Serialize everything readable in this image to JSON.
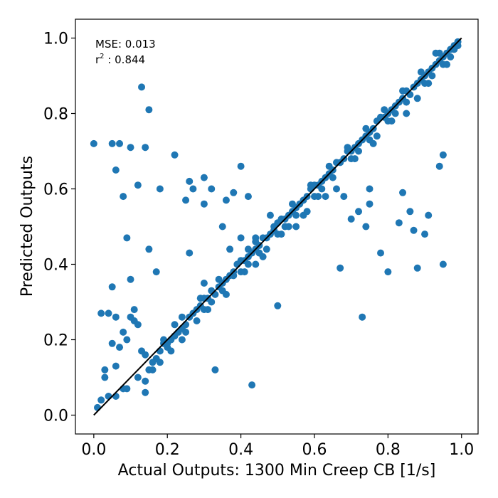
{
  "chart_data": {
    "type": "scatter",
    "title": "",
    "xlabel": "Actual Outputs: 1300 Min Creep CB [1/s]",
    "ylabel": "Predicted Outputs",
    "xlim": [
      -0.05,
      1.045
    ],
    "ylim": [
      -0.05,
      1.05
    ],
    "xticks": [
      0.0,
      0.2,
      0.4,
      0.6,
      0.8,
      1.0
    ],
    "yticks": [
      0.0,
      0.2,
      0.4,
      0.6,
      0.8,
      1.0
    ],
    "xtick_labels": [
      "0.0",
      "0.2",
      "0.4",
      "0.6",
      "0.8",
      "1.0"
    ],
    "ytick_labels": [
      "0.0",
      "0.2",
      "0.4",
      "0.6",
      "0.8",
      "1.0"
    ],
    "grid": false,
    "annotation": {
      "mse_text": "MSE: 0.013",
      "r2_prefix": "r",
      "r2_sup": "2",
      "r2_value": " : 0.844"
    },
    "point_color": "#1f77b4",
    "line_color": "#000000",
    "reference_line": {
      "x": [
        0.0,
        1.0
      ],
      "y": [
        0.0,
        1.0
      ]
    },
    "series": [
      {
        "x": [
          0.0,
          0.13,
          0.15,
          0.07,
          0.05,
          0.14,
          0.1,
          0.22,
          0.25,
          0.26,
          0.3,
          0.32,
          0.36,
          0.27,
          0.38,
          0.4,
          0.42,
          0.44,
          0.47,
          0.42,
          0.4,
          0.48,
          0.06,
          0.12,
          0.18,
          0.09,
          0.1,
          0.15,
          0.05,
          0.08,
          0.17,
          0.26,
          0.35,
          0.3,
          0.37,
          0.3,
          0.38,
          0.5,
          0.33,
          0.43,
          0.67,
          0.73,
          0.78,
          0.74,
          0.8,
          0.87,
          0.91,
          0.95,
          0.83,
          0.84,
          0.86,
          0.95,
          0.88,
          0.9,
          0.94,
          0.72,
          0.75,
          0.68,
          0.7,
          0.75,
          0.55,
          0.02,
          0.04,
          0.06,
          0.1,
          0.11,
          0.12,
          0.08,
          0.05,
          0.07,
          0.03,
          0.09,
          0.11,
          0.13,
          0.14,
          0.03,
          0.04,
          0.06,
          0.09,
          0.01,
          0.02,
          0.17,
          0.19,
          0.21,
          0.23,
          0.25,
          0.27,
          0.29,
          0.31,
          0.33,
          0.35,
          0.37,
          0.39,
          0.41,
          0.43,
          0.45,
          0.47,
          0.49,
          0.51,
          0.53,
          0.55,
          0.57,
          0.59,
          0.61,
          0.63,
          0.65,
          0.67,
          0.69,
          0.71,
          0.73,
          0.75,
          0.77,
          0.79,
          0.81,
          0.83,
          0.85,
          0.87,
          0.89,
          0.91,
          0.93,
          0.95,
          0.97,
          0.99,
          0.16,
          0.18,
          0.2,
          0.22,
          0.24,
          0.26,
          0.28,
          0.3,
          0.32,
          0.34,
          0.36,
          0.38,
          0.4,
          0.42,
          0.44,
          0.46,
          0.48,
          0.5,
          0.52,
          0.54,
          0.56,
          0.58,
          0.6,
          0.62,
          0.64,
          0.66,
          0.68,
          0.7,
          0.72,
          0.74,
          0.76,
          0.78,
          0.8,
          0.82,
          0.84,
          0.86,
          0.88,
          0.9,
          0.92,
          0.94,
          0.96,
          0.98,
          0.15,
          0.2,
          0.25,
          0.3,
          0.35,
          0.4,
          0.45,
          0.5,
          0.55,
          0.6,
          0.65,
          0.7,
          0.75,
          0.8,
          0.85,
          0.9,
          0.95,
          0.12,
          0.22,
          0.32,
          0.42,
          0.52,
          0.62,
          0.72,
          0.82,
          0.92,
          0.14,
          0.24,
          0.34,
          0.44,
          0.54,
          0.64,
          0.74,
          0.84,
          0.94,
          0.21,
          0.31,
          0.41,
          0.51,
          0.61,
          0.71,
          0.81,
          0.91,
          0.19,
          0.29,
          0.39,
          0.49,
          0.59,
          0.69,
          0.79,
          0.89,
          0.99,
          0.97,
          0.96,
          0.98,
          0.93,
          0.85,
          0.88,
          0.76,
          0.77,
          0.66,
          0.63,
          0.58,
          0.57,
          0.53,
          0.46,
          0.44,
          0.36,
          0.28,
          0.24,
          0.18,
          0.16,
          0.14,
          0.08,
          0.06
        ],
        "y": [
          0.72,
          0.87,
          0.81,
          0.72,
          0.72,
          0.71,
          0.71,
          0.69,
          0.57,
          0.62,
          0.63,
          0.6,
          0.57,
          0.6,
          0.59,
          0.66,
          0.58,
          0.47,
          0.44,
          0.44,
          0.47,
          0.53,
          0.65,
          0.61,
          0.6,
          0.47,
          0.36,
          0.44,
          0.34,
          0.58,
          0.38,
          0.43,
          0.5,
          0.56,
          0.44,
          0.35,
          0.37,
          0.29,
          0.12,
          0.08,
          0.39,
          0.26,
          0.43,
          0.5,
          0.38,
          0.49,
          0.53,
          0.4,
          0.51,
          0.59,
          0.54,
          0.69,
          0.39,
          0.48,
          0.66,
          0.54,
          0.56,
          0.58,
          0.52,
          0.6,
          0.5,
          0.27,
          0.27,
          0.26,
          0.26,
          0.28,
          0.24,
          0.22,
          0.19,
          0.18,
          0.12,
          0.2,
          0.25,
          0.17,
          0.06,
          0.1,
          0.05,
          0.13,
          0.07,
          0.02,
          0.04,
          0.15,
          0.19,
          0.2,
          0.22,
          0.24,
          0.27,
          0.29,
          0.31,
          0.32,
          0.35,
          0.37,
          0.4,
          0.41,
          0.43,
          0.45,
          0.47,
          0.49,
          0.52,
          0.53,
          0.55,
          0.57,
          0.6,
          0.61,
          0.63,
          0.65,
          0.67,
          0.7,
          0.71,
          0.73,
          0.75,
          0.78,
          0.79,
          0.81,
          0.83,
          0.86,
          0.87,
          0.89,
          0.91,
          0.93,
          0.95,
          0.97,
          0.98,
          0.14,
          0.17,
          0.19,
          0.21,
          0.23,
          0.26,
          0.28,
          0.31,
          0.33,
          0.34,
          0.36,
          0.38,
          0.41,
          0.42,
          0.44,
          0.47,
          0.48,
          0.51,
          0.52,
          0.54,
          0.56,
          0.58,
          0.61,
          0.62,
          0.64,
          0.67,
          0.68,
          0.7,
          0.72,
          0.74,
          0.76,
          0.79,
          0.8,
          0.82,
          0.84,
          0.85,
          0.88,
          0.9,
          0.92,
          0.94,
          0.96,
          0.98,
          0.12,
          0.18,
          0.22,
          0.28,
          0.33,
          0.38,
          0.43,
          0.48,
          0.53,
          0.58,
          0.63,
          0.68,
          0.73,
          0.78,
          0.83,
          0.88,
          0.93,
          0.1,
          0.24,
          0.3,
          0.4,
          0.5,
          0.6,
          0.7,
          0.8,
          0.9,
          0.16,
          0.26,
          0.36,
          0.46,
          0.56,
          0.66,
          0.76,
          0.86,
          0.96,
          0.17,
          0.28,
          0.38,
          0.48,
          0.58,
          0.68,
          0.78,
          0.88,
          0.2,
          0.31,
          0.4,
          0.5,
          0.61,
          0.71,
          0.81,
          0.91,
          0.99,
          0.95,
          0.93,
          0.97,
          0.96,
          0.8,
          0.84,
          0.72,
          0.74,
          0.6,
          0.58,
          0.54,
          0.53,
          0.5,
          0.42,
          0.4,
          0.32,
          0.25,
          0.2,
          0.14,
          0.12,
          0.09,
          0.07,
          0.05
        ]
      }
    ]
  }
}
